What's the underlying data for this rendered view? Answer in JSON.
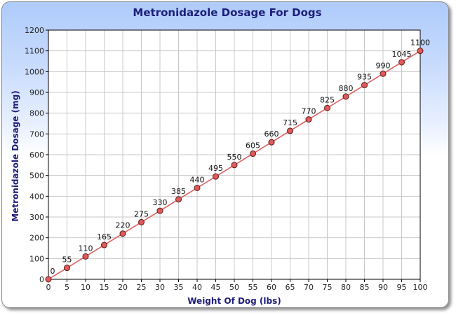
{
  "chart_data": {
    "type": "line",
    "title": "Metronidazole Dosage For Dogs",
    "xlabel": "Weight Of Dog (lbs)",
    "ylabel": "Metronidazole Dosage (mg)",
    "x": [
      0,
      5,
      10,
      15,
      20,
      25,
      30,
      35,
      40,
      45,
      50,
      55,
      60,
      65,
      70,
      75,
      80,
      85,
      90,
      95,
      100
    ],
    "series": [
      {
        "values": [
          0,
          55,
          110,
          165,
          220,
          275,
          330,
          385,
          440,
          495,
          550,
          605,
          660,
          715,
          770,
          825,
          880,
          935,
          990,
          1045,
          1100
        ]
      }
    ],
    "xlim": [
      0,
      100
    ],
    "ylim": [
      0,
      1200
    ],
    "xticks": [
      "0",
      "5",
      "10",
      "15",
      "20",
      "25",
      "30",
      "35",
      "40",
      "45",
      "50",
      "55",
      "60",
      "65",
      "70",
      "75",
      "80",
      "85",
      "90",
      "95",
      "100"
    ],
    "yticks": [
      "0",
      "100",
      "200",
      "300",
      "400",
      "500",
      "600",
      "700",
      "800",
      "900",
      "1000",
      "1100",
      "1200"
    ],
    "grid": true,
    "legend": "none",
    "colors": {
      "line": "#e06060",
      "marker_fill": "#e05a5a",
      "marker_stroke": "#5a1a1a",
      "title": "#1d1d7a",
      "grid": "#c8c8c8"
    }
  }
}
